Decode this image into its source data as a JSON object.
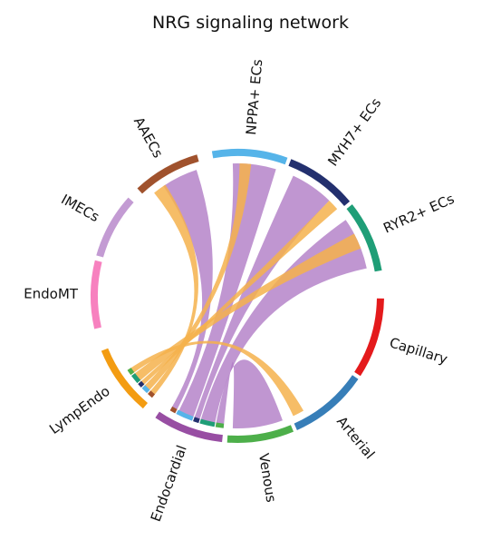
{
  "title": "NRG signaling network",
  "chart_data": {
    "type": "chord",
    "title": "NRG signaling network",
    "groups": [
      {
        "name": "NPPA+ ECs",
        "color": "#56b4e9"
      },
      {
        "name": "MYH7+ ECs",
        "color": "#23306e"
      },
      {
        "name": "RYR2+ ECs",
        "color": "#1f9e77"
      },
      {
        "name": "Capillary",
        "color": "#e41a1c"
      },
      {
        "name": "Arterial",
        "color": "#377eb8"
      },
      {
        "name": "Venous",
        "color": "#4daf4a"
      },
      {
        "name": "Endocardial",
        "color": "#984ea3"
      },
      {
        "name": "LympEndo",
        "color": "#f39c12"
      },
      {
        "name": "EndoMT",
        "color": "#f781bf"
      },
      {
        "name": "IMECs",
        "color": "#c39bd3"
      },
      {
        "name": "AAECs",
        "color": "#a0522d"
      }
    ],
    "links": [
      {
        "source": "Endocardial",
        "target": "NPPA+ ECs",
        "color": "#b07cc6"
      },
      {
        "source": "Endocardial",
        "target": "MYH7+ ECs",
        "color": "#b07cc6"
      },
      {
        "source": "Endocardial",
        "target": "RYR2+ ECs",
        "color": "#b07cc6"
      },
      {
        "source": "Endocardial",
        "target": "Venous",
        "color": "#b07cc6"
      },
      {
        "source": "Endocardial",
        "target": "AAECs",
        "color": "#b07cc6"
      },
      {
        "source": "LympEndo",
        "target": "NPPA+ ECs",
        "color": "#f5b24c"
      },
      {
        "source": "LympEndo",
        "target": "MYH7+ ECs",
        "color": "#f5b24c"
      },
      {
        "source": "LympEndo",
        "target": "RYR2+ ECs",
        "color": "#f5b24c"
      },
      {
        "source": "LympEndo",
        "target": "Venous",
        "color": "#f5b24c"
      },
      {
        "source": "LympEndo",
        "target": "AAECs",
        "color": "#f5b24c"
      }
    ]
  }
}
